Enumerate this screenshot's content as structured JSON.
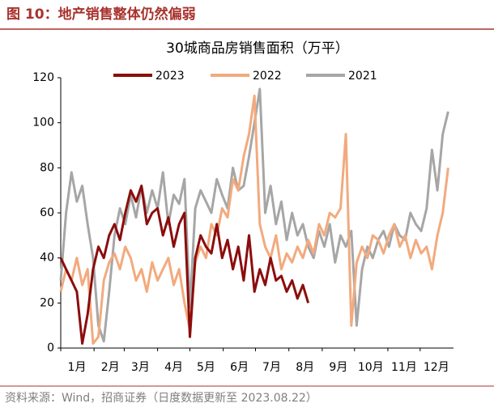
{
  "header": {
    "title": "图 10：地产销售整体仍然偏弱"
  },
  "chart_data": {
    "type": "line",
    "title": "30城商品房销售面积（万平）",
    "x": [
      1,
      6,
      11,
      16,
      21,
      26,
      31,
      36,
      41,
      46,
      51,
      56,
      61,
      66,
      71,
      76,
      81,
      86,
      91,
      96,
      101,
      106,
      111,
      116,
      121,
      126,
      131,
      136,
      141,
      146,
      151,
      156,
      161,
      166,
      171,
      176,
      181,
      186,
      191,
      196,
      201,
      206,
      211,
      216,
      221,
      226,
      231,
      236,
      241,
      246,
      251,
      256,
      261,
      266,
      271,
      276,
      281,
      286,
      291,
      296,
      301,
      306,
      311,
      316,
      321,
      326,
      331,
      336,
      341,
      346,
      351,
      356,
      361
    ],
    "xlim": [
      1,
      366
    ],
    "xticks": [
      {
        "value": 1,
        "label": "1月"
      },
      {
        "value": 32,
        "label": "2月"
      },
      {
        "value": 60,
        "label": "3月"
      },
      {
        "value": 91,
        "label": "4月"
      },
      {
        "value": 121,
        "label": "5月"
      },
      {
        "value": 152,
        "label": "6月"
      },
      {
        "value": 182,
        "label": "7月"
      },
      {
        "value": 213,
        "label": "8月"
      },
      {
        "value": 244,
        "label": "9月"
      },
      {
        "value": 274,
        "label": "10月"
      },
      {
        "value": 305,
        "label": "11月"
      },
      {
        "value": 335,
        "label": "12月"
      }
    ],
    "ylim": [
      0,
      120
    ],
    "yticks": [
      0,
      20,
      40,
      60,
      80,
      100,
      120
    ],
    "series": [
      {
        "name": "2023",
        "color": "#8b0d0d",
        "values": [
          40,
          35,
          30,
          25,
          2,
          15,
          35,
          45,
          40,
          50,
          55,
          48,
          60,
          70,
          65,
          72,
          55,
          60,
          62,
          50,
          58,
          45,
          55,
          60,
          5,
          40,
          50,
          45,
          42,
          55,
          40,
          48,
          35,
          45,
          30,
          50,
          25,
          35,
          28,
          40,
          30,
          32,
          25,
          30,
          22,
          28,
          20,
          null,
          null,
          null,
          null,
          null,
          null,
          null,
          null,
          null,
          null,
          null,
          null,
          null,
          null,
          null,
          null,
          null,
          null,
          null,
          null,
          null,
          null,
          null,
          null,
          null,
          null
        ]
      },
      {
        "name": "2022",
        "color": "#f2aa7e",
        "values": [
          25,
          35,
          30,
          40,
          28,
          35,
          2,
          5,
          30,
          38,
          42,
          35,
          45,
          40,
          30,
          35,
          25,
          38,
          30,
          35,
          40,
          28,
          35,
          20,
          8,
          38,
          45,
          40,
          55,
          50,
          62,
          58,
          75,
          70,
          85,
          95,
          112,
          55,
          45,
          40,
          50,
          35,
          42,
          38,
          45,
          40,
          48,
          42,
          55,
          50,
          60,
          58,
          62,
          95,
          10,
          38,
          45,
          40,
          50,
          48,
          42,
          50,
          55,
          45,
          50,
          40,
          48,
          42,
          45,
          35,
          50,
          60,
          80
        ]
      },
      {
        "name": "2021",
        "color": "#a6a6a6",
        "values": [
          30,
          60,
          78,
          65,
          72,
          55,
          40,
          10,
          3,
          25,
          50,
          62,
          55,
          68,
          58,
          72,
          60,
          70,
          62,
          78,
          55,
          68,
          64,
          75,
          18,
          62,
          70,
          65,
          60,
          75,
          68,
          62,
          80,
          70,
          72,
          85,
          100,
          115,
          60,
          72,
          55,
          65,
          48,
          60,
          50,
          55,
          45,
          40,
          52,
          45,
          55,
          38,
          50,
          45,
          52,
          10,
          35,
          45,
          40,
          48,
          52,
          45,
          55,
          50,
          48,
          60,
          55,
          52,
          62,
          88,
          70,
          95,
          105
        ]
      }
    ]
  },
  "footer": {
    "source": "资料来源：Wind，招商证券（日度数据更新至 2023.08.22）"
  }
}
